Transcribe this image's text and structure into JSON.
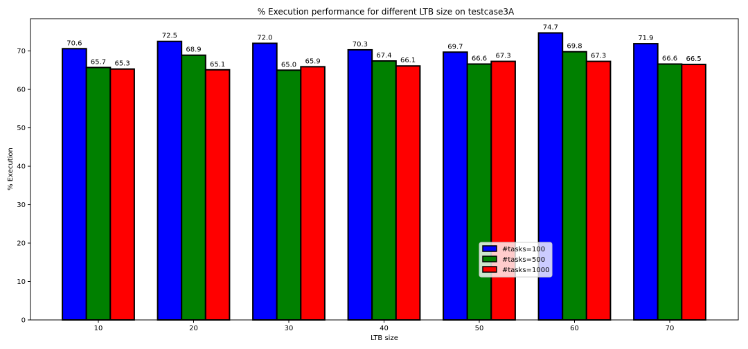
{
  "chart_data": {
    "type": "bar",
    "title": "% Execution performance for different LTB size on testcase3A",
    "xlabel": "LTB size",
    "ylabel": "% Execution",
    "categories": [
      "10",
      "20",
      "30",
      "40",
      "50",
      "60",
      "70"
    ],
    "ylim": [
      0,
      78.4
    ],
    "yticks": [
      0,
      10,
      20,
      30,
      40,
      50,
      60,
      70
    ],
    "legend_position": "lower-center",
    "series": [
      {
        "name": "#tasks=100",
        "color": "#0000ff",
        "values": [
          70.6,
          72.5,
          72.0,
          70.3,
          69.7,
          74.7,
          71.9
        ]
      },
      {
        "name": "#tasks=500",
        "color": "#008000",
        "values": [
          65.7,
          68.9,
          65.0,
          67.4,
          66.6,
          69.8,
          66.6
        ]
      },
      {
        "name": "#tasks=1000",
        "color": "#ff0000",
        "values": [
          65.3,
          65.1,
          65.9,
          66.1,
          67.3,
          67.3,
          66.5
        ]
      }
    ]
  }
}
